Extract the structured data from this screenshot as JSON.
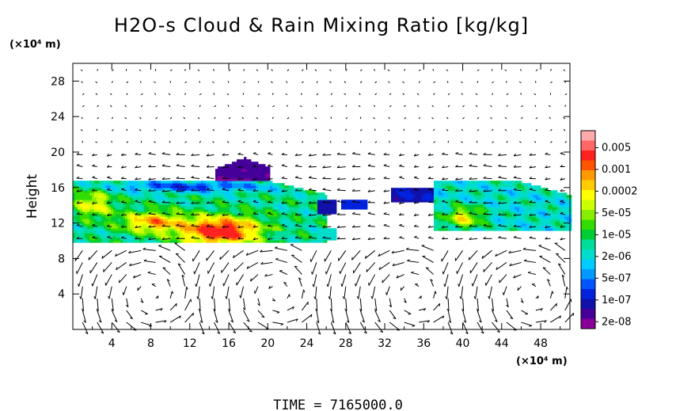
{
  "chart_data": {
    "type": "heatmap",
    "title": "H2O-s Cloud & Rain Mixing Ratio [kg/kg]",
    "ylabel": "Height",
    "x_unit": "(×10⁴ m)",
    "y_unit": "(×10⁴ m)",
    "xlim": [
      0,
      51
    ],
    "ylim": [
      0,
      30
    ],
    "x_ticks": [
      "4",
      "8",
      "12",
      "16",
      "20",
      "24",
      "28",
      "32",
      "36",
      "40",
      "44",
      "48"
    ],
    "y_ticks": [
      "4",
      "8",
      "12",
      "16",
      "20",
      "24",
      "28"
    ],
    "colorbar": {
      "scale": "log",
      "labels": [
        "0.005",
        "0.001",
        "0.0002",
        "5e-05",
        "1e-05",
        "2e-06",
        "5e-07",
        "1e-07",
        "2e-08"
      ],
      "colors": [
        "#ffaaaa",
        "#ff6666",
        "#ff2020",
        "#ff5500",
        "#ff9900",
        "#ffcc00",
        "#ffff00",
        "#ccff00",
        "#88ee00",
        "#33dd00",
        "#00cc33",
        "#00dd99",
        "#00ddcc",
        "#00ccff",
        "#0099ff",
        "#0055ff",
        "#0022dd",
        "#1111aa",
        "#440099",
        "#880099"
      ]
    },
    "cloud_regions": [
      {
        "x": [
          0,
          18
        ],
        "y": [
          10,
          16.5
        ],
        "level": "1e-05 to 0.001"
      },
      {
        "x": [
          15,
          20
        ],
        "y": [
          16,
          19
        ],
        "level": "1e-07"
      },
      {
        "x": [
          18,
          26
        ],
        "y": [
          11,
          16
        ],
        "level": "2e-06"
      },
      {
        "x": [
          33,
          51
        ],
        "y": [
          11,
          16
        ],
        "level": "5e-07 to 5e-05"
      }
    ],
    "vectors": "wind field"
  },
  "footer": {
    "time_label": "TIME  =  7165000.0"
  }
}
